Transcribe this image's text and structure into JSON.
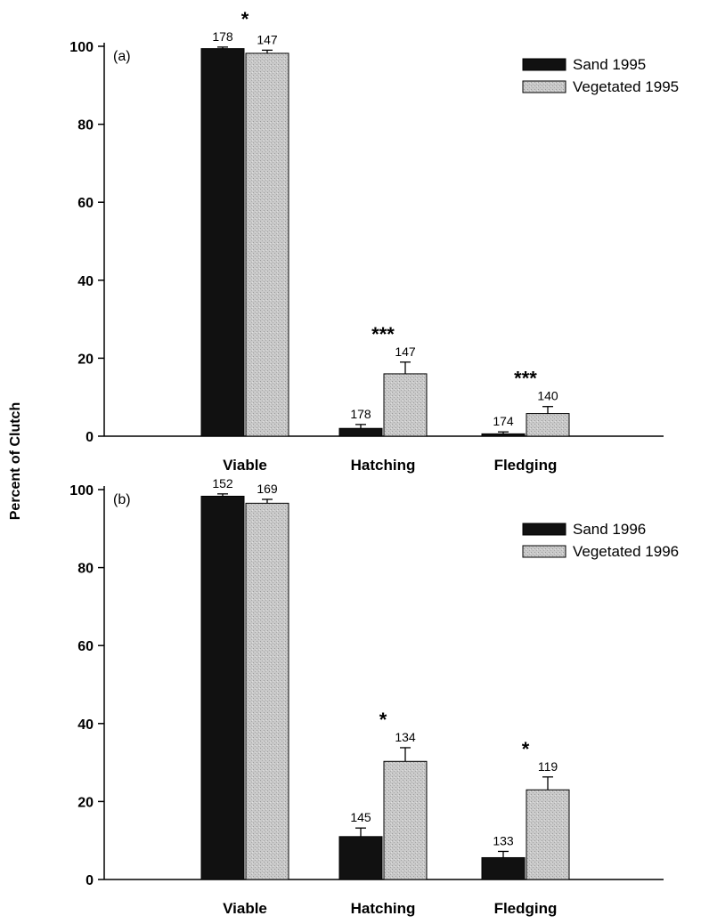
{
  "figure": {
    "y_axis_label": "Percent of Clutch"
  },
  "colors": {
    "sand": "#111111",
    "vegetated": "#c8c8c8",
    "axis": "#000000"
  },
  "chart_data": [
    {
      "type": "bar",
      "panel_label": "(a)",
      "categories": [
        "Viable",
        "Hatching",
        "Fledging"
      ],
      "ylim": [
        0,
        100
      ],
      "yticks": [
        0,
        20,
        40,
        60,
        80,
        100
      ],
      "ylabel": "Percent of Clutch",
      "legend_position": "top-right",
      "series": [
        {
          "name": "Sand 1995",
          "color_key": "sand",
          "values": [
            99.4,
            2.0,
            0.6
          ],
          "errors": [
            0.4,
            1.0,
            0.5
          ],
          "n": [
            "178",
            "178",
            "174"
          ]
        },
        {
          "name": "Vegetated 1995",
          "color_key": "vegetated",
          "values": [
            98.2,
            16.0,
            5.8
          ],
          "errors": [
            0.8,
            3.0,
            1.8
          ],
          "n": [
            "147",
            "147",
            "140"
          ]
        }
      ],
      "significance": [
        "*",
        "***",
        "***"
      ]
    },
    {
      "type": "bar",
      "panel_label": "(b)",
      "categories": [
        "Viable",
        "Hatching",
        "Fledging"
      ],
      "ylim": [
        0,
        100
      ],
      "yticks": [
        0,
        20,
        40,
        60,
        80,
        100
      ],
      "ylabel": "Percent of Clutch",
      "legend_position": "top-right",
      "series": [
        {
          "name": "Sand 1996",
          "color_key": "sand",
          "values": [
            98.3,
            11.0,
            5.6
          ],
          "errors": [
            0.6,
            2.2,
            1.6
          ],
          "n": [
            "152",
            "145",
            "133"
          ]
        },
        {
          "name": "Vegetated 1996",
          "color_key": "vegetated",
          "values": [
            96.5,
            30.3,
            23.0
          ],
          "errors": [
            1.0,
            3.5,
            3.3
          ],
          "n": [
            "169",
            "134",
            "119"
          ]
        }
      ],
      "significance": [
        "",
        "*",
        "*"
      ]
    }
  ]
}
